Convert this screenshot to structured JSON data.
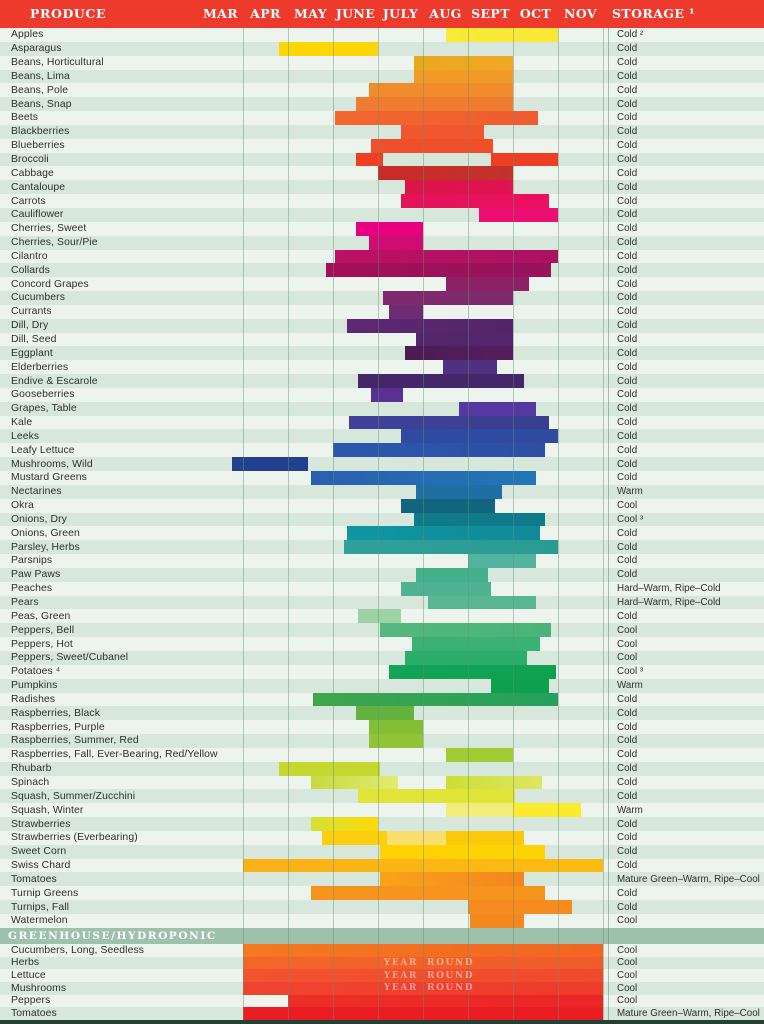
{
  "title": "Produce seasonal availability and storage chart",
  "colors": {
    "header_bg": "#EE3A2C",
    "row_light": "#EDF4EE",
    "row_dark": "#D8E7DB",
    "gridline": "#60A270",
    "band_bg": "#9EC1AB",
    "footer_bg": "#24413A",
    "label_text": "#2E2E2E"
  },
  "header": {
    "produce": "PRODUCE",
    "months": [
      "MAR",
      "APR",
      "MAY",
      "JUNE",
      "JULY",
      "AUG",
      "SEPT",
      "OCT",
      "NOV"
    ],
    "storage": "STORAGE ¹"
  },
  "year_round_words": [
    "YEAR",
    "ROUND"
  ],
  "greenhouse_title": "GREENHOUSE/HYDROPONIC",
  "chart_data": {
    "type": "bar",
    "orientation": "horizontal-gantt",
    "x_axis": {
      "unit": "month",
      "labels": [
        "MAR",
        "APR",
        "MAY",
        "JUNE",
        "JULY",
        "AUG",
        "SEPT",
        "OCT",
        "NOV"
      ],
      "range": [
        0,
        9
      ]
    },
    "note": "s/e are month offsets where 0 = start of MAR and 9 = end of NOV; c/c2 are bar colors",
    "rows": [
      {
        "name": "Apples",
        "storage": "Cold ²",
        "bars": [
          {
            "s": 5.5,
            "e": 8.0,
            "c": "#F8EC38",
            "c2": "#FBE735"
          }
        ]
      },
      {
        "name": "Asparagus",
        "storage": "Cold",
        "bars": [
          {
            "s": 1.8,
            "e": 4.0,
            "c": "#FCD606"
          }
        ]
      },
      {
        "name": "Beans, Horticultural",
        "storage": "Cold",
        "bars": [
          {
            "s": 4.8,
            "e": 7.0,
            "c": "#E8A81E",
            "c2": "#F0A725"
          }
        ]
      },
      {
        "name": "Beans, Lima",
        "storage": "Cold",
        "bars": [
          {
            "s": 4.8,
            "e": 7.0,
            "c": "#F19A27"
          }
        ]
      },
      {
        "name": "Beans, Pole",
        "storage": "Cold",
        "bars": [
          {
            "s": 3.8,
            "e": 7.0,
            "c": "#F08C2C"
          }
        ]
      },
      {
        "name": "Beans, Snap",
        "storage": "Cold",
        "bars": [
          {
            "s": 3.5,
            "e": 7.0,
            "c": "#F07C31"
          }
        ]
      },
      {
        "name": "Beets",
        "storage": "Cold",
        "bars": [
          {
            "s": 3.05,
            "e": 7.55,
            "c": "#F2672F",
            "c2": "#F05C30"
          }
        ]
      },
      {
        "name": "Blackberries",
        "storage": "Cold",
        "bars": [
          {
            "s": 4.5,
            "e": 6.35,
            "c": "#F0572E"
          }
        ]
      },
      {
        "name": "Blueberries",
        "storage": "Cold",
        "bars": [
          {
            "s": 3.85,
            "e": 6.55,
            "c": "#F04F2B"
          }
        ]
      },
      {
        "name": "Broccoli",
        "storage": "Cold",
        "bars": [
          {
            "s": 3.5,
            "e": 4.1,
            "c": "#EE3F24"
          },
          {
            "s": 6.5,
            "e": 8.0,
            "c": "#EE3F24"
          }
        ]
      },
      {
        "name": "Cabbage",
        "storage": "Cold",
        "bars": [
          {
            "s": 4.0,
            "e": 7.0,
            "c": "#C92B28",
            "c2": "#C2332C"
          }
        ]
      },
      {
        "name": "Cantaloupe",
        "storage": "Cold",
        "bars": [
          {
            "s": 4.6,
            "e": 7.0,
            "c": "#D81648",
            "c2": "#E21253"
          }
        ]
      },
      {
        "name": "Carrots",
        "storage": "Cold",
        "bars": [
          {
            "s": 4.5,
            "e": 7.8,
            "c": "#E31356",
            "c2": "#EA1062"
          }
        ]
      },
      {
        "name": "Cauliflower",
        "storage": "Cold",
        "bars": [
          {
            "s": 6.25,
            "e": 8.0,
            "c": "#EC0E70"
          }
        ]
      },
      {
        "name": "Cherries, Sweet",
        "storage": "Cold",
        "bars": [
          {
            "s": 3.5,
            "e": 5.0,
            "c": "#E7007F"
          }
        ]
      },
      {
        "name": "Cherries, Sour/Pie",
        "storage": "Cold",
        "bars": [
          {
            "s": 3.8,
            "e": 5.0,
            "c": "#D00C72"
          }
        ]
      },
      {
        "name": "Cilantro",
        "storage": "Cold",
        "bars": [
          {
            "s": 3.05,
            "e": 8.0,
            "c": "#BC1164",
            "c2": "#AC1260"
          }
        ]
      },
      {
        "name": "Collards",
        "storage": "Cold",
        "bars": [
          {
            "s": 2.85,
            "e": 7.85,
            "c": "#A31058",
            "c2": "#97135C"
          }
        ]
      },
      {
        "name": "Concord Grapes",
        "storage": "Cold",
        "bars": [
          {
            "s": 5.5,
            "e": 7.35,
            "c": "#8D2166"
          }
        ]
      },
      {
        "name": "Cucumbers",
        "storage": "Cold",
        "bars": [
          {
            "s": 4.1,
            "e": 7.0,
            "c": "#7E2A6D"
          }
        ]
      },
      {
        "name": "Currants",
        "storage": "Cold",
        "bars": [
          {
            "s": 4.25,
            "e": 5.0,
            "c": "#6E2C74"
          }
        ]
      },
      {
        "name": "Dill, Dry",
        "storage": "Cold",
        "bars": [
          {
            "s": 3.3,
            "e": 7.0,
            "c": "#5D2971",
            "c2": "#53246A"
          }
        ]
      },
      {
        "name": "Dill, Seed",
        "storage": "Cold",
        "bars": [
          {
            "s": 4.85,
            "e": 7.0,
            "c": "#53256D"
          }
        ]
      },
      {
        "name": "Eggplant",
        "storage": "Cold",
        "bars": [
          {
            "s": 4.6,
            "e": 7.0,
            "c": "#4C1C52",
            "c2": "#541E5E"
          }
        ]
      },
      {
        "name": "Elderberries",
        "storage": "Cold",
        "bars": [
          {
            "s": 5.45,
            "e": 6.65,
            "c": "#503081"
          }
        ]
      },
      {
        "name": "Endive & Escarole",
        "storage": "Cold",
        "bars": [
          {
            "s": 3.55,
            "e": 7.25,
            "c": "#432768"
          }
        ]
      },
      {
        "name": "Gooseberries",
        "storage": "Cold",
        "bars": [
          {
            "s": 3.85,
            "e": 4.55,
            "c": "#5A3193"
          }
        ]
      },
      {
        "name": "Grapes, Table",
        "storage": "Cold",
        "bars": [
          {
            "s": 5.8,
            "e": 7.5,
            "c": "#5638A2"
          }
        ]
      },
      {
        "name": "Kale",
        "storage": "Cold",
        "bars": [
          {
            "s": 3.35,
            "e": 7.8,
            "c": "#41409A",
            "c2": "#383F90"
          }
        ]
      },
      {
        "name": "Leeks",
        "storage": "Cold",
        "bars": [
          {
            "s": 4.5,
            "e": 8.0,
            "c": "#2F4AA1"
          }
        ]
      },
      {
        "name": "Leafy Lettuce",
        "storage": "Cold",
        "bars": [
          {
            "s": 3.0,
            "e": 7.7,
            "c": "#2B58AE",
            "c2": "#2C4FA4"
          }
        ]
      },
      {
        "name": "Mushrooms, Wild",
        "storage": "Cold",
        "bars": [
          {
            "s": 0.75,
            "e": 2.45,
            "c": "#21418D"
          }
        ]
      },
      {
        "name": "Mustard Greens",
        "storage": "Cold",
        "bars": [
          {
            "s": 2.5,
            "e": 7.5,
            "c": "#2A5FB0",
            "c2": "#2177B6"
          }
        ]
      },
      {
        "name": "Nectarines",
        "storage": "Warm",
        "bars": [
          {
            "s": 4.85,
            "e": 6.75,
            "c": "#1F6FA5"
          }
        ]
      },
      {
        "name": "Okra",
        "storage": "Cool",
        "bars": [
          {
            "s": 4.5,
            "e": 6.6,
            "c": "#13647F"
          }
        ]
      },
      {
        "name": "Onions, Dry",
        "storage": "Cool ³",
        "bars": [
          {
            "s": 4.8,
            "e": 7.7,
            "c": "#0F7A8A"
          }
        ]
      },
      {
        "name": "Onions, Green",
        "storage": "Cold",
        "bars": [
          {
            "s": 3.3,
            "e": 7.6,
            "c": "#0F96A0",
            "c2": "#12899A"
          }
        ]
      },
      {
        "name": "Parsley, Herbs",
        "storage": "Cold",
        "bars": [
          {
            "s": 3.25,
            "e": 8.0,
            "c": "#2EA19A",
            "c2": "#2A9B92"
          }
        ]
      },
      {
        "name": "Parsnips",
        "storage": "Cold",
        "bars": [
          {
            "s": 6.0,
            "e": 7.5,
            "c": "#52B49E"
          }
        ]
      },
      {
        "name": "Paw Paws",
        "storage": "Cold",
        "bars": [
          {
            "s": 4.85,
            "e": 6.45,
            "c": "#45B08D"
          }
        ]
      },
      {
        "name": "Peaches",
        "storage": "Hard–Warm, Ripe–Cold",
        "bars": [
          {
            "s": 4.5,
            "e": 6.5,
            "c": "#4FB393"
          }
        ]
      },
      {
        "name": "Pears",
        "storage": "Hard–Warm, Ripe–Cold",
        "bars": [
          {
            "s": 5.1,
            "e": 7.5,
            "c": "#58B694"
          }
        ]
      },
      {
        "name": "Peas, Green",
        "storage": "Cold",
        "bars": [
          {
            "s": 3.55,
            "e": 4.5,
            "c": "#9FD1A6"
          }
        ]
      },
      {
        "name": "Peppers, Bell",
        "storage": "Cool",
        "bars": [
          {
            "s": 4.05,
            "e": 7.85,
            "c": "#55B87E",
            "c2": "#49B378"
          }
        ]
      },
      {
        "name": "Peppers, Hot",
        "storage": "Cool",
        "bars": [
          {
            "s": 4.75,
            "e": 7.6,
            "c": "#3BB173"
          }
        ]
      },
      {
        "name": "Peppers, Sweet/Cubanel",
        "storage": "Cool",
        "bars": [
          {
            "s": 4.6,
            "e": 7.3,
            "c": "#2BAE6A"
          }
        ]
      },
      {
        "name": "Potatoes ⁴",
        "storage": "Cool ³",
        "bars": [
          {
            "s": 4.25,
            "e": 7.95,
            "c": "#13A457",
            "c2": "#0FA050"
          }
        ]
      },
      {
        "name": "Pumpkins",
        "storage": "Warm",
        "bars": [
          {
            "s": 6.5,
            "e": 7.8,
            "c": "#0DA04E"
          }
        ]
      },
      {
        "name": "Radishes",
        "storage": "Cold",
        "bars": [
          {
            "s": 2.55,
            "e": 8.0,
            "c": "#3FA64B",
            "c2": "#23A05F"
          }
        ]
      },
      {
        "name": "Raspberries, Black",
        "storage": "Cold",
        "bars": [
          {
            "s": 3.5,
            "e": 4.8,
            "c": "#63B23D"
          }
        ]
      },
      {
        "name": "Raspberries, Purple",
        "storage": "Cold",
        "bars": [
          {
            "s": 3.8,
            "e": 5.0,
            "c": "#84BE37"
          }
        ]
      },
      {
        "name": "Raspberries, Summer, Red",
        "storage": "Cold",
        "bars": [
          {
            "s": 3.8,
            "e": 5.0,
            "c": "#90C436"
          }
        ]
      },
      {
        "name": "Raspberries, Fall, Ever-Bearing, Red/Yellow",
        "storage": "Cold",
        "bars": [
          {
            "s": 5.5,
            "e": 7.0,
            "c": "#A3CB33"
          }
        ]
      },
      {
        "name": "Rhubarb",
        "storage": "Cold",
        "bars": [
          {
            "s": 1.8,
            "e": 4.05,
            "c": "#C3D92F"
          }
        ]
      },
      {
        "name": "Spinach",
        "storage": "Cold",
        "bars": [
          {
            "s": 2.5,
            "e": 4.45,
            "c": "#C6DB3E",
            "c2": "#E2EA73"
          },
          {
            "s": 5.5,
            "e": 7.65,
            "c": "#CCDE36",
            "c2": "#DEE660"
          }
        ]
      },
      {
        "name": "Squash, Summer/Zucchini",
        "storage": "Cold",
        "bars": [
          {
            "s": 3.55,
            "e": 7.05,
            "c": "#DFE437"
          }
        ]
      },
      {
        "name": "Squash, Winter",
        "storage": "Warm",
        "bars": [
          {
            "s": 5.5,
            "e": 7.0,
            "c": "#F3EC7A"
          },
          {
            "s": 7.0,
            "e": 8.5,
            "c": "#FBEA2F"
          }
        ]
      },
      {
        "name": "Strawberries",
        "storage": "Cold",
        "bars": [
          {
            "s": 2.5,
            "e": 4.0,
            "c": "#D5E135",
            "c2": "#FED905"
          }
        ]
      },
      {
        "name": "Strawberries (Everbearing)",
        "storage": "Cold",
        "bars": [
          {
            "s": 2.75,
            "e": 4.2,
            "c": "#FBCF10"
          },
          {
            "s": 4.2,
            "e": 5.5,
            "c": "#F9DF6E"
          },
          {
            "s": 5.5,
            "e": 7.25,
            "c": "#FBC90A"
          }
        ]
      },
      {
        "name": "Sweet Corn",
        "storage": "Cold",
        "bars": [
          {
            "s": 4.05,
            "e": 7.7,
            "c": "#FFD303"
          }
        ]
      },
      {
        "name": "Swiss Chard",
        "storage": "Cold",
        "bars": [
          {
            "s": 1.0,
            "e": 9.0,
            "c": "#FAB118",
            "c2": "#FBBC12"
          }
        ]
      },
      {
        "name": "Tomatoes",
        "storage": "Mature Green–Warm, Ripe–Cool",
        "bars": [
          {
            "s": 4.05,
            "e": 7.25,
            "c": "#FAA319",
            "c2": "#F58420"
          }
        ]
      },
      {
        "name": "Turnip Greens",
        "storage": "Cold",
        "bars": [
          {
            "s": 2.5,
            "e": 7.7,
            "c": "#F6941E"
          }
        ]
      },
      {
        "name": "Turnips, Fall",
        "storage": "Cold",
        "bars": [
          {
            "s": 6.0,
            "e": 8.3,
            "c": "#F68C20"
          }
        ]
      },
      {
        "name": "Watermelon",
        "storage": "Cool",
        "bars": [
          {
            "s": 6.05,
            "e": 7.25,
            "c": "#F5871F"
          }
        ]
      }
    ],
    "greenhouse_rows": [
      {
        "name": "Cucumbers, Long, Seedless",
        "storage": "Cool",
        "year_round": false,
        "bars": [
          {
            "s": 1.0,
            "e": 9.0,
            "c": "#F4791F",
            "c2": "#F26522"
          }
        ]
      },
      {
        "name": "Herbs",
        "storage": "Cool",
        "year_round": true,
        "bars": [
          {
            "s": 1.0,
            "e": 9.0,
            "c": "#F3662A",
            "c2": "#F15B2B"
          }
        ]
      },
      {
        "name": "Lettuce",
        "storage": "Cool",
        "year_round": true,
        "bars": [
          {
            "s": 1.0,
            "e": 9.0,
            "c": "#F1542E",
            "c2": "#F04A2C"
          }
        ]
      },
      {
        "name": "Mushrooms",
        "storage": "Cool",
        "year_round": true,
        "bars": [
          {
            "s": 1.0,
            "e": 9.0,
            "c": "#EF4430",
            "c2": "#EE3B2B"
          }
        ]
      },
      {
        "name": "Peppers",
        "storage": "Cool",
        "year_round": false,
        "bars": [
          {
            "s": 2.0,
            "e": 9.0,
            "c": "#ED2F27",
            "c2": "#EC2526"
          }
        ]
      },
      {
        "name": "Tomatoes",
        "storage": "Mature Green–Warm, Ripe–Cool",
        "year_round": false,
        "bars": [
          {
            "s": 1.0,
            "e": 9.0,
            "c": "#EA1C24"
          }
        ]
      }
    ]
  }
}
